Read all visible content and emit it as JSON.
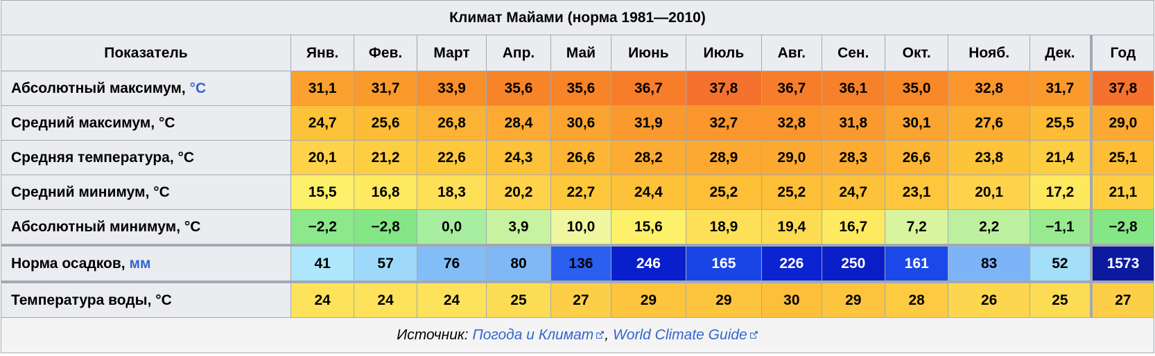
{
  "title": "Климат Майами (норма 1981—2010)",
  "header": [
    "Показатель",
    "Янв.",
    "Фев.",
    "Март",
    "Апр.",
    "Май",
    "Июнь",
    "Июль",
    "Авг.",
    "Сен.",
    "Окт.",
    "Нояб.",
    "Дек.",
    "Год"
  ],
  "rows": [
    {
      "label": "Абсолютный максимум,",
      "unit_link": "°C",
      "values": [
        "31,1",
        "31,7",
        "33,9",
        "35,6",
        "35,6",
        "36,7",
        "37,8",
        "36,7",
        "36,1",
        "35,0",
        "32,8",
        "31,7",
        "37,8"
      ],
      "colors": [
        "#fca030",
        "#fb9a2c",
        "#f98f2a",
        "#f88428",
        "#f88428",
        "#f77d2a",
        "#f4722d",
        "#f77d2a",
        "#f7812a",
        "#f88828",
        "#fa962c",
        "#fb9a2c",
        "#f4722d"
      ]
    },
    {
      "label": "Средний максимум, °C",
      "values": [
        "24,7",
        "25,6",
        "26,8",
        "28,4",
        "30,6",
        "31,9",
        "32,7",
        "32,8",
        "31,8",
        "30,1",
        "27,6",
        "25,5",
        "29,0"
      ],
      "colors": [
        "#fdc338",
        "#fdbb36",
        "#fcb234",
        "#fcaa32",
        "#fba430",
        "#fa9a2e",
        "#fa962c",
        "#fa962c",
        "#fa9a2e",
        "#fba430",
        "#fcae33",
        "#fdbb36",
        "#fca931"
      ]
    },
    {
      "label": "Средняя температура, °C",
      "values": [
        "20,1",
        "21,2",
        "22,6",
        "24,3",
        "26,6",
        "28,2",
        "28,9",
        "29,0",
        "28,3",
        "26,6",
        "23,8",
        "21,4",
        "25,1"
      ],
      "colors": [
        "#fed24a",
        "#fdce42",
        "#fdc83c",
        "#fdc13a",
        "#fcb535",
        "#fcac33",
        "#fca931",
        "#fca931",
        "#fcac33",
        "#fcb535",
        "#fdc33a",
        "#fdce42",
        "#fdbd37"
      ]
    },
    {
      "label": "Средний минимум, °C",
      "values": [
        "15,5",
        "16,8",
        "18,3",
        "20,2",
        "22,7",
        "24,4",
        "25,2",
        "25,2",
        "24,7",
        "23,1",
        "20,1",
        "17,2",
        "21,1"
      ],
      "colors": [
        "#fdf06a",
        "#fdea60",
        "#fde058",
        "#fed24a",
        "#fdc83c",
        "#fdc13a",
        "#fdbe38",
        "#fdbe38",
        "#fdc13a",
        "#fdc63c",
        "#fed24a",
        "#fee85e",
        "#fdce42"
      ]
    },
    {
      "label": "Абсолютный минимум, °C",
      "values": [
        "−2,2",
        "−2,8",
        "0,0",
        "3,9",
        "10,0",
        "15,6",
        "18,9",
        "19,4",
        "16,7",
        "7,2",
        "2,2",
        "−1,1",
        "−2,8"
      ],
      "colors": [
        "#8be88b",
        "#85e685",
        "#a8eea0",
        "#c7f2a0",
        "#eef7a0",
        "#fdf06a",
        "#fde058",
        "#fddb52",
        "#fdea60",
        "#d9f49e",
        "#bcf09e",
        "#98ea90",
        "#85e685"
      ]
    },
    {
      "label": "Норма осадков,",
      "unit_link": "мм",
      "values": [
        "41",
        "57",
        "76",
        "80",
        "136",
        "246",
        "165",
        "226",
        "250",
        "161",
        "83",
        "52",
        "1573"
      ],
      "colors": [
        "#aee6fb",
        "#9ed9fb",
        "#82bdf8",
        "#7fb8f7",
        "#2a5ff0",
        "#0a1fcc",
        "#1a45e6",
        "#0b23d0",
        "#0a1ec8",
        "#1c48e8",
        "#7db4f7",
        "#a4def9",
        "#0c1aa0"
      ]
    },
    {
      "label": "Температура воды, °C",
      "values": [
        "24",
        "24",
        "24",
        "25",
        "27",
        "29",
        "29",
        "30",
        "29",
        "28",
        "26",
        "25",
        "27"
      ],
      "colors": [
        "#fde25c",
        "#fde25c",
        "#fde25c",
        "#fddc55",
        "#fdcf48",
        "#fdc43e",
        "#fdc43e",
        "#fdbe3a",
        "#fdc43e",
        "#fdca42",
        "#fdd64f",
        "#fddc55",
        "#fdcf48"
      ]
    }
  ],
  "footer": {
    "label": "Источник:",
    "links": [
      "Погода и Климат",
      "World Climate Guide"
    ],
    "separator": ","
  }
}
